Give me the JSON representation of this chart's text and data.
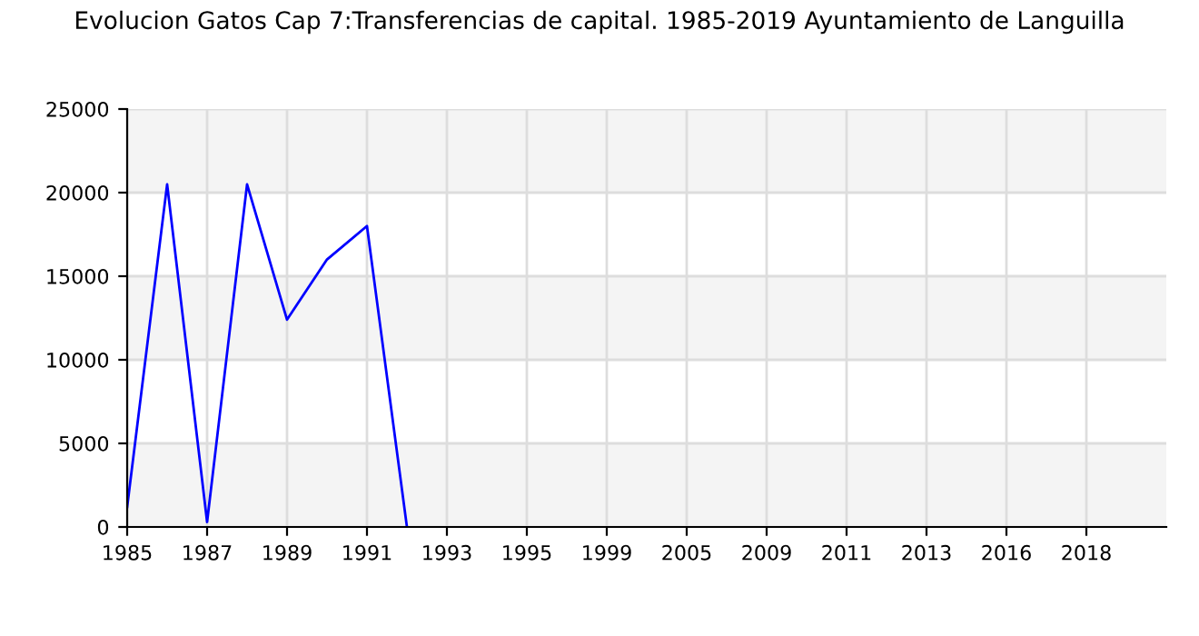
{
  "chart_data": {
    "type": "line",
    "title": "Evolucion Gatos Cap 7:Transferencias de capital. 1985-2019 Ayuntamiento de Languilla",
    "categories": [
      "1985",
      null,
      "1987",
      null,
      "1989",
      null,
      "1991",
      null,
      "1993",
      null,
      "1995",
      null,
      "1999",
      null,
      "2005",
      null,
      "2009",
      null,
      "2011",
      null,
      "2013",
      null,
      "2016",
      null,
      "2018",
      null,
      null
    ],
    "series": [
      {
        "color": "#0000ff",
        "values": [
          1200,
          20500,
          300,
          20500,
          12400,
          16000,
          18000,
          0,
          null,
          null,
          null,
          null,
          null,
          null,
          null,
          null,
          null,
          null,
          null,
          null,
          null,
          null,
          null,
          null,
          null,
          null,
          null
        ]
      }
    ],
    "ylim": [
      0,
      25000
    ],
    "yticks": [
      0,
      5000,
      10000,
      15000,
      20000,
      25000
    ],
    "grid": true,
    "marker": "none",
    "line_style": "solid",
    "legend": false
  }
}
